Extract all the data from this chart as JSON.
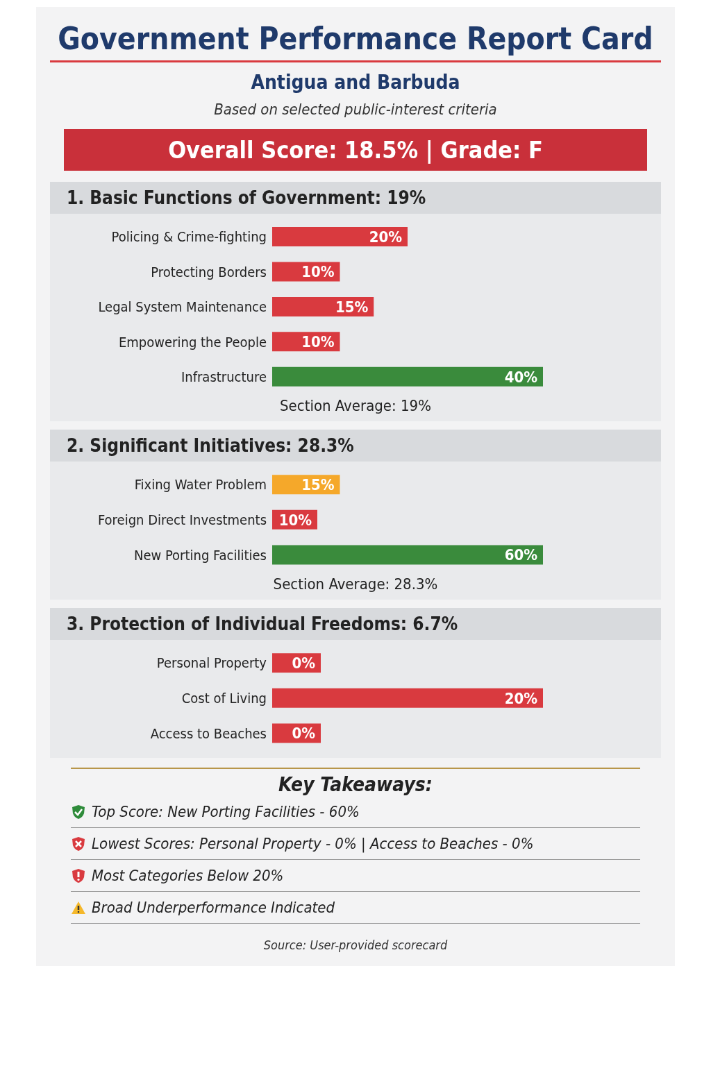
{
  "chart_data": [
    {
      "type": "other",
      "title": "Government Performance Report Card",
      "subtitle": "Antigua and Barbuda",
      "annotations": [
        "Based on selected public-interest criteria",
        "Overall Score: 18.5% | Grade: F"
      ]
    },
    {
      "type": "bar",
      "orientation": "horizontal",
      "title": "1. Basic Functions of Government: 19%",
      "categories": [
        "Policing & Crime-fighting",
        "Protecting Borders",
        "Legal System Maintenance",
        "Empowering the People",
        "Infrastructure"
      ],
      "values": [
        20,
        10,
        15,
        10,
        40
      ],
      "value_labels": [
        "20%",
        "10%",
        "15%",
        "10%",
        "40%"
      ],
      "colors": [
        "#d93a3f",
        "#d93a3f",
        "#d93a3f",
        "#d93a3f",
        "#3a8b3c"
      ],
      "annotations": [
        "Section Average: 19%"
      ]
    },
    {
      "type": "bar",
      "orientation": "horizontal",
      "title": "2. Significant Initiatives: 28.3%",
      "categories": [
        "Fixing Water Problem",
        "Foreign Direct Investments",
        "New Porting Facilities"
      ],
      "values": [
        15,
        10,
        60
      ],
      "value_labels": [
        "15%",
        "10%",
        "60%"
      ],
      "colors": [
        "#f5a82a",
        "#d93a3f",
        "#3a8b3c"
      ],
      "annotations": [
        "Section Average: 28.3%"
      ]
    },
    {
      "type": "bar",
      "orientation": "horizontal",
      "title": "3. Protection of Individual Freedoms: 6.7%",
      "categories": [
        "Personal Property",
        "Cost of Living",
        "Access to Beaches"
      ],
      "values": [
        0,
        20,
        0
      ],
      "value_labels": [
        "0%",
        "20%",
        "0%"
      ],
      "colors": [
        "#d93a3f",
        "#d93a3f",
        "#d93a3f"
      ]
    },
    {
      "type": "other",
      "title": "Key Takeaways:",
      "annotations": [
        "Top Score: New Porting Facilities - 60%",
        "Lowest Scores: Personal Property - 0% | Access to Beaches - 0%",
        "Most Categories Below 20%",
        "Broad Underperformance Indicated",
        "Source: User-provided scorecard"
      ]
    }
  ]
}
